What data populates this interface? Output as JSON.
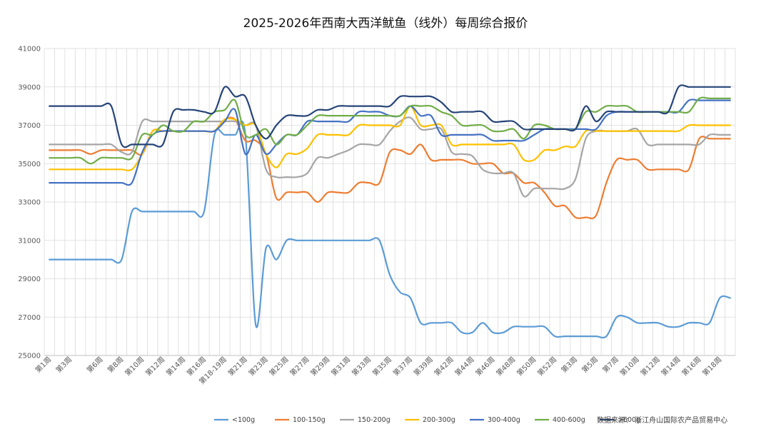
{
  "chart_data": {
    "type": "line",
    "title": "2025-2026年西南大西洋鱿鱼（线外）每周综合报价",
    "source": "数据来源：  浙江舟山国际农产品贸易中心",
    "ylim": [
      25000,
      41000
    ],
    "yticks": [
      25000,
      27000,
      29000,
      31000,
      33000,
      35000,
      37000,
      39000,
      41000
    ],
    "grid": true,
    "legend_position": "bottom",
    "categories": [
      "第1周",
      "第2周",
      "第3周",
      "第4周",
      "第5周",
      "第6周",
      "第7周",
      "第8周",
      "第9周",
      "第10周",
      "第11周",
      "第12周",
      "第13周",
      "第14周",
      "第15周",
      "第16周",
      "第17周",
      "第18-19周",
      "第20周",
      "第21周",
      "第22周",
      "第23周",
      "第24周",
      "第25周",
      "第26周",
      "第27周",
      "第28周",
      "第29周",
      "第30周",
      "第31周",
      "第32周",
      "第33周",
      "第34周",
      "第35周",
      "第36周",
      "第37周",
      "第38周",
      "第39周",
      "第40-41周",
      "第42周",
      "第43周",
      "第44周",
      "第45周",
      "第46周",
      "第47周",
      "第48周",
      "第49周",
      "第50周",
      "第51周",
      "第52周",
      "第1周",
      "第3周",
      "第4周",
      "第5周",
      "第6周",
      "第7周",
      "第8周",
      "第10周",
      "第11周",
      "第12周",
      "第13周",
      "第14周",
      "第15周",
      "第16周",
      "第17周",
      "第18周",
      "第19周"
    ],
    "tick_labels_shown": [
      "第1周",
      "第3周",
      "第6周",
      "第8周",
      "第10周",
      "第12周",
      "第14周",
      "第16周",
      "第18-19周",
      "第21周",
      "第23周",
      "第25周",
      "第27周",
      "第29周",
      "第31周",
      "第33周",
      "第35周",
      "第37周",
      "第39周",
      "第42周",
      "第44周",
      "第46周",
      "第48周",
      "第50周",
      "第52周",
      "第3周",
      "第5周",
      "第7周",
      "第10周",
      "第12周",
      "第14周",
      "第16周",
      "第18周"
    ],
    "series": [
      {
        "name": "<100g",
        "color": "#5B9BD5",
        "values": [
          30000,
          30000,
          30000,
          30000,
          30000,
          30000,
          30000,
          30000,
          32500,
          32500,
          32500,
          32500,
          32500,
          32500,
          32500,
          32500,
          36500,
          36500,
          36500,
          36500,
          26600,
          30600,
          30000,
          31000,
          31000,
          31000,
          31000,
          31000,
          31000,
          31000,
          31000,
          31000,
          31000,
          29200,
          28300,
          28000,
          26700,
          26700,
          26700,
          26700,
          26200,
          26200,
          26700,
          26200,
          26200,
          26500,
          26500,
          26500,
          26500,
          26000,
          26000,
          26000,
          26000,
          26000,
          26000,
          27000,
          27000,
          26700,
          26700,
          26700,
          26500,
          26500,
          26700,
          26700,
          26700,
          28000,
          28000
        ]
      },
      {
        "name": "100-150g",
        "color": "#ED7D31",
        "values": [
          35700,
          35700,
          35700,
          35700,
          35500,
          35700,
          35700,
          35700,
          35700,
          35500,
          36700,
          36700,
          36700,
          36700,
          36700,
          36700,
          36700,
          37300,
          37300,
          36200,
          36200,
          35500,
          33200,
          33500,
          33500,
          33500,
          33000,
          33500,
          33500,
          33500,
          34000,
          34000,
          34000,
          35600,
          35700,
          35500,
          36000,
          35200,
          35200,
          35200,
          35200,
          35000,
          35000,
          35000,
          34500,
          34500,
          34000,
          34000,
          33500,
          32800,
          32800,
          32200,
          32200,
          32300,
          34000,
          35200,
          35200,
          35200,
          34700,
          34700,
          34700,
          34700,
          34700,
          36300,
          36300,
          36300,
          36300
        ]
      },
      {
        "name": "150-200g",
        "color": "#A5A5A5",
        "values": [
          36000,
          36000,
          36000,
          36000,
          36000,
          36000,
          36000,
          35600,
          35600,
          37200,
          37200,
          37200,
          37200,
          37200,
          37200,
          37200,
          37200,
          37200,
          37200,
          37000,
          37000,
          34700,
          34300,
          34300,
          34300,
          34500,
          35300,
          35300,
          35500,
          35700,
          36000,
          36000,
          36000,
          36700,
          37200,
          37400,
          36800,
          36800,
          36800,
          35600,
          35500,
          35400,
          34700,
          34500,
          34500,
          34500,
          33300,
          33700,
          33700,
          33700,
          33700,
          34200,
          36300,
          36700,
          36700,
          36700,
          36700,
          36800,
          36000,
          36000,
          36000,
          36000,
          36000,
          36000,
          36500,
          36500,
          36500
        ]
      },
      {
        "name": "200-300g",
        "color": "#FFC000",
        "values": [
          34700,
          34700,
          34700,
          34700,
          34700,
          34700,
          34700,
          34700,
          34700,
          35500,
          36700,
          36700,
          36700,
          36700,
          36700,
          36700,
          36700,
          37300,
          37300,
          37000,
          37000,
          35500,
          34800,
          35500,
          35500,
          35800,
          36500,
          36500,
          36500,
          36500,
          37000,
          37000,
          37000,
          37000,
          37000,
          38000,
          37000,
          37000,
          37000,
          36000,
          36000,
          36000,
          36000,
          36000,
          36000,
          36000,
          35200,
          35200,
          35700,
          35700,
          35900,
          35900,
          36700,
          36700,
          36700,
          36700,
          36700,
          36700,
          36700,
          36700,
          36700,
          36700,
          37000,
          37000,
          37000,
          37000,
          37000
        ]
      },
      {
        "name": "300-400g",
        "color": "#4472C4",
        "values": [
          34000,
          34000,
          34000,
          34000,
          34000,
          34000,
          34000,
          34000,
          34000,
          35600,
          36500,
          36700,
          36700,
          36700,
          36700,
          36700,
          36700,
          37200,
          37800,
          35500,
          36500,
          35500,
          36000,
          36500,
          36500,
          37200,
          37200,
          37200,
          37200,
          37200,
          37700,
          37700,
          37700,
          37500,
          37500,
          38000,
          37500,
          37500,
          36500,
          36500,
          36500,
          36500,
          36500,
          36200,
          36200,
          36200,
          36200,
          36500,
          36800,
          36800,
          36800,
          36800,
          36800,
          36800,
          37500,
          37700,
          37700,
          37700,
          37700,
          37700,
          37700,
          37700,
          38300,
          38300,
          38300,
          38300,
          38300
        ]
      },
      {
        "name": "400-600g",
        "color": "#70AD47",
        "values": [
          35300,
          35300,
          35300,
          35300,
          35000,
          35300,
          35300,
          35300,
          35300,
          36500,
          36500,
          37000,
          36700,
          36700,
          37200,
          37200,
          37700,
          37800,
          38300,
          36500,
          36500,
          36800,
          36000,
          36500,
          36500,
          37000,
          37500,
          37500,
          37500,
          37500,
          37500,
          37500,
          37500,
          37500,
          37500,
          38000,
          38000,
          38000,
          37700,
          37500,
          37000,
          37000,
          37000,
          36700,
          36700,
          36800,
          36300,
          37000,
          37000,
          36800,
          36800,
          36800,
          37700,
          37700,
          38000,
          38000,
          38000,
          37700,
          37700,
          37700,
          37700,
          37700,
          37700,
          38400,
          38400,
          38400,
          38400
        ]
      },
      {
        "name": ">600g",
        "color": "#264478",
        "values": [
          38000,
          38000,
          38000,
          38000,
          38000,
          38000,
          38000,
          36000,
          36000,
          36000,
          36000,
          36000,
          37700,
          37800,
          37800,
          37700,
          37700,
          39000,
          38500,
          38500,
          37000,
          36300,
          37000,
          37500,
          37500,
          37500,
          37800,
          37800,
          38000,
          38000,
          38000,
          38000,
          38000,
          38000,
          38500,
          38500,
          38500,
          38500,
          38200,
          37700,
          37700,
          37700,
          37700,
          37200,
          37200,
          37200,
          36800,
          36800,
          36800,
          36800,
          36800,
          36800,
          38000,
          37200,
          37700,
          37700,
          37700,
          37700,
          37700,
          37700,
          37700,
          39000,
          39000,
          39000,
          39000,
          39000,
          39000
        ]
      }
    ]
  }
}
